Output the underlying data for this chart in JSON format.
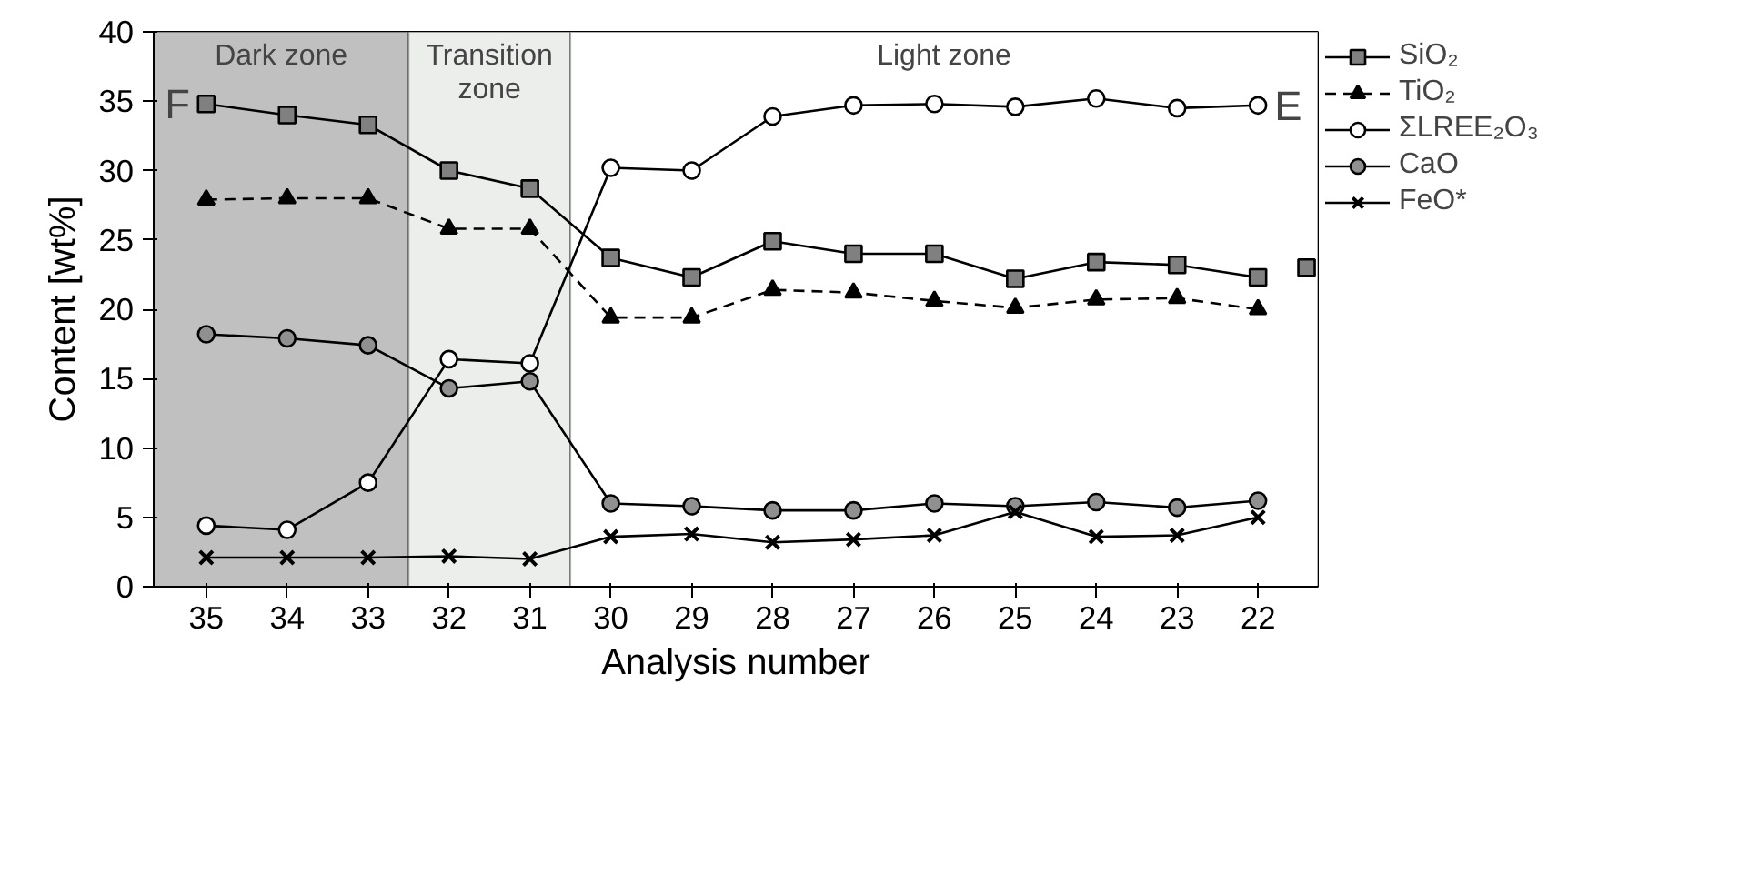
{
  "chart_data": {
    "type": "line",
    "xlabel": "Analysis number",
    "ylabel": "Content [wt%]",
    "x": [
      35,
      34,
      33,
      32,
      31,
      30,
      29,
      28,
      27,
      26,
      25,
      24,
      23,
      22
    ],
    "xlim": [
      35.65,
      21.26
    ],
    "xticks": [
      35,
      34,
      33,
      32,
      31,
      30,
      29,
      28,
      27,
      26,
      25,
      24,
      23,
      22
    ],
    "ylim": [
      0,
      40
    ],
    "yticks": [
      0,
      5,
      10,
      15,
      20,
      25,
      30,
      35,
      40
    ],
    "grid": false,
    "legend": "top right",
    "series": [
      {
        "name": "SiO₂",
        "color": "#808080",
        "marker": "square",
        "line_style": "solid",
        "values": [
          34.8,
          34.0,
          33.3,
          30.0,
          28.7,
          23.7,
          22.3,
          24.9,
          24.0,
          24.0,
          22.2,
          23.4,
          23.2,
          22.3
        ]
      },
      {
        "name": "TiO₂",
        "color": "#000000",
        "marker": "triangle",
        "line_style": "dashed",
        "values": [
          27.9,
          28.0,
          28.0,
          25.8,
          25.8,
          19.4,
          19.4,
          21.4,
          21.2,
          20.6,
          20.1,
          20.7,
          20.8,
          20.0
        ]
      },
      {
        "name": "ΣLREE₂O₃",
        "color": "#ffffff",
        "marker": "circle",
        "line_style": "solid",
        "values": [
          4.4,
          4.1,
          7.5,
          16.4,
          16.1,
          30.2,
          30.0,
          33.9,
          34.7,
          34.8,
          34.6,
          35.2,
          34.5,
          34.7
        ]
      },
      {
        "name": "CaO",
        "color": "#909090",
        "marker": "circle",
        "line_style": "solid",
        "values": [
          18.2,
          17.9,
          17.4,
          14.3,
          14.8,
          6.0,
          5.8,
          5.5,
          5.5,
          6.0,
          5.8,
          6.1,
          5.7,
          6.2
        ]
      },
      {
        "name": "FeO*",
        "color": "#000000",
        "marker": "cross",
        "line_style": "solid",
        "values": [
          2.1,
          2.1,
          2.1,
          2.2,
          2.0,
          3.6,
          3.8,
          3.2,
          3.4,
          3.7,
          5.4,
          3.6,
          3.7,
          5.0
        ]
      },
      {
        "type": "scatter",
        "color": "#808080",
        "marker": "square",
        "x": [
          21.4
        ],
        "values": [
          23.0
        ]
      }
    ],
    "bands": [
      {
        "axis": "x",
        "from": 35.65,
        "to": 32.5,
        "label": "Dark zone",
        "color": "#c0c0c0"
      },
      {
        "axis": "x",
        "from": 32.5,
        "to": 30.5,
        "label": "Transition zone",
        "color": "#eceeec"
      },
      {
        "axis": "x",
        "from": 30.5,
        "to": 21.26,
        "label": "Light zone",
        "color": "#ffffff"
      }
    ],
    "annotations": [
      {
        "text": "F",
        "x": 35,
        "y": 34.8
      },
      {
        "text": "E",
        "x": 22,
        "y": 34.7
      }
    ]
  }
}
